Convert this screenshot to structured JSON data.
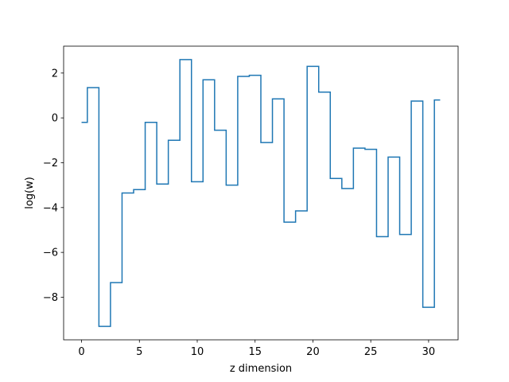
{
  "chart_data": {
    "type": "line",
    "drawstyle": "steps-mid",
    "title": "",
    "xlabel": "z dimension",
    "ylabel": "log(w)",
    "xlim": [
      -1.55,
      32.55
    ],
    "ylim": [
      -9.9,
      3.2
    ],
    "xticks": [
      0,
      5,
      10,
      15,
      20,
      25,
      30
    ],
    "xtick_labels": [
      "0",
      "5",
      "10",
      "15",
      "20",
      "25",
      "30"
    ],
    "yticks": [
      -8,
      -6,
      -4,
      -2,
      0,
      2
    ],
    "ytick_labels": [
      "−8",
      "−6",
      "−4",
      "−2",
      "0",
      "2"
    ],
    "grid": false,
    "legend": "none",
    "series": [
      {
        "color": "#1f77b4",
        "x": [
          0,
          1,
          2,
          3,
          4,
          5,
          6,
          7,
          8,
          9,
          10,
          11,
          12,
          13,
          14,
          15,
          16,
          17,
          18,
          19,
          20,
          21,
          22,
          23,
          24,
          25,
          26,
          27,
          28,
          29,
          30,
          31
        ],
        "y": [
          -0.2,
          1.35,
          -9.3,
          -7.35,
          -3.35,
          -3.2,
          -0.2,
          -2.95,
          -1.0,
          2.6,
          -2.85,
          1.7,
          -0.55,
          -3.0,
          1.85,
          1.9,
          -1.1,
          0.85,
          -4.65,
          -4.15,
          2.3,
          1.15,
          -2.7,
          -3.15,
          -1.35,
          -1.4,
          -5.3,
          -1.75,
          -5.2,
          0.75,
          -8.45,
          0.8
        ]
      }
    ]
  }
}
